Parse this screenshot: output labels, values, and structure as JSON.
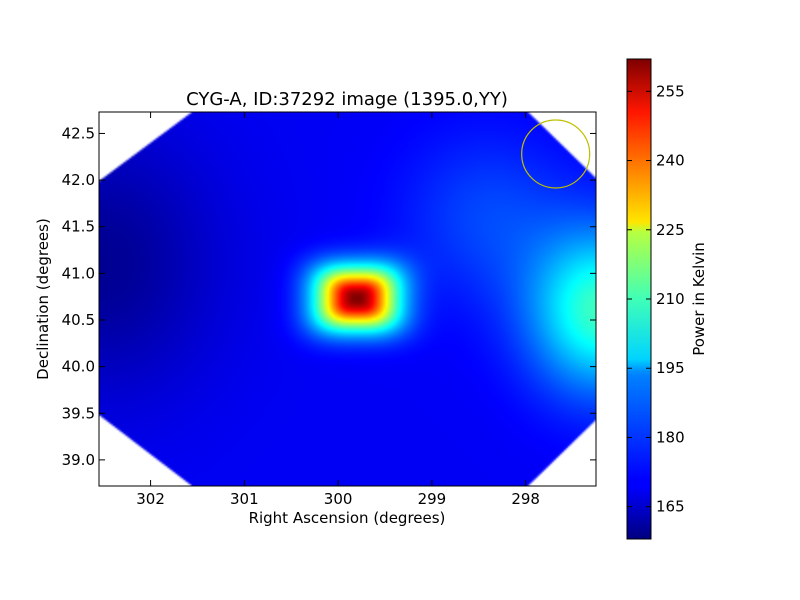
{
  "chart_data": {
    "type": "heatmap",
    "title": "CYG-A, ID:37292 image (1395.0,YY)",
    "xlabel": "Right Ascension (degrees)",
    "ylabel": "Declination (degrees)",
    "colorbar_label": "Power in Kelvin",
    "colormap": "jet",
    "x_inverted": true,
    "xlim": [
      302.55,
      297.25
    ],
    "ylim": [
      38.72,
      42.73
    ],
    "x_ticks": [
      302,
      301,
      300,
      299,
      298
    ],
    "x_tick_labels": [
      "302",
      "301",
      "300",
      "299",
      "298"
    ],
    "y_ticks": [
      39.0,
      39.5,
      40.0,
      40.5,
      41.0,
      41.5,
      42.0,
      42.5
    ],
    "y_tick_labels": [
      "39.0",
      "39.5",
      "40.0",
      "40.5",
      "41.0",
      "41.5",
      "42.0",
      "42.5"
    ],
    "color_range": [
      158,
      262
    ],
    "colorbar_ticks": [
      165,
      180,
      195,
      210,
      225,
      240,
      255
    ],
    "colorbar_tick_labels": [
      "165",
      "180",
      "195",
      "210",
      "225",
      "240",
      "255"
    ],
    "field_shape": "octagon",
    "peak": {
      "ra": 299.8,
      "dec": 40.73,
      "value": 262
    },
    "secondary_peak": {
      "ra": 297.2,
      "dec": 40.6,
      "value": 203
    },
    "minimum_region": {
      "ra": 302.5,
      "dec": 41.1,
      "value": 160
    },
    "background_level": 170,
    "beam_marker": {
      "ra": 297.68,
      "dec": 42.28,
      "shape": "circle",
      "color": "#bfbf00"
    }
  }
}
